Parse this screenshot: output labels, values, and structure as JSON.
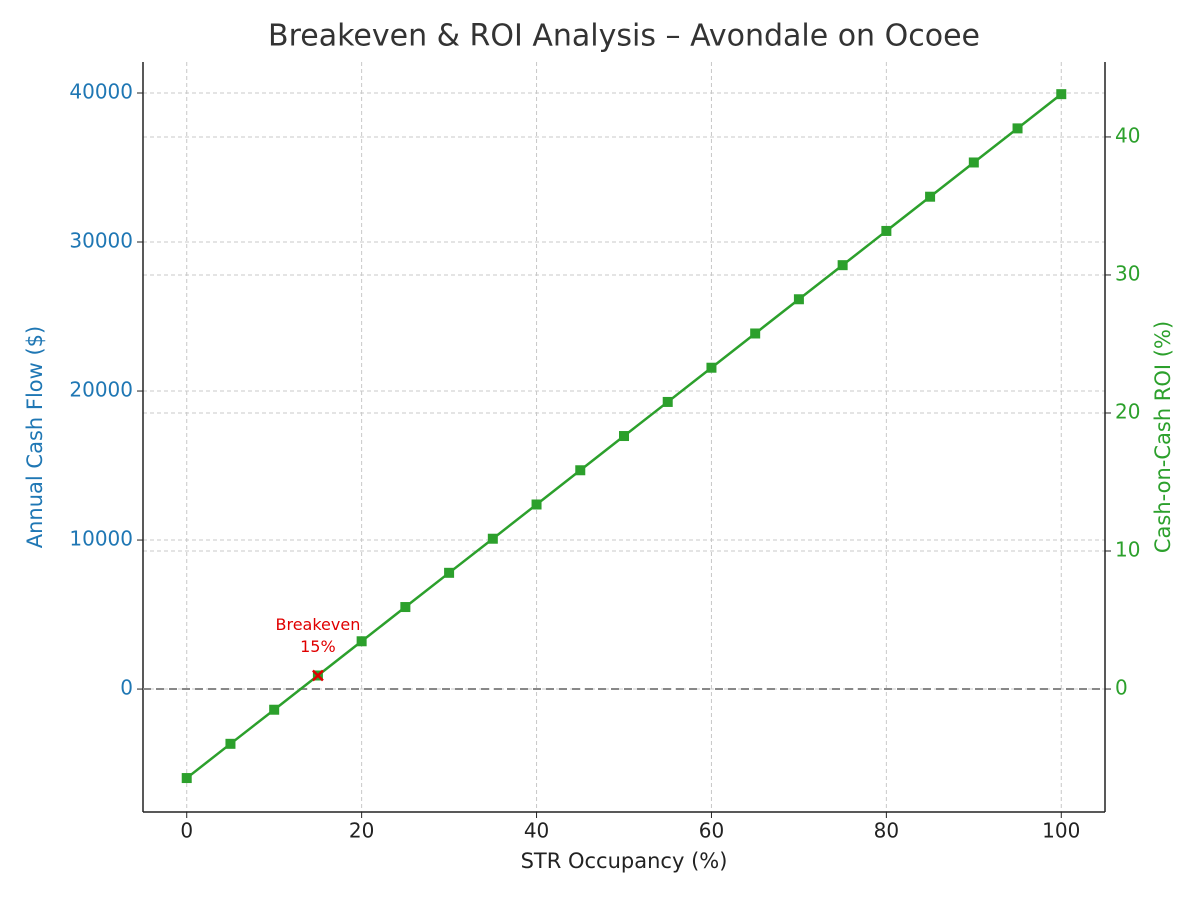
{
  "chart_data": {
    "type": "line",
    "title": "Breakeven & ROI Analysis – Avondale on Ocoee",
    "x_label": "STR Occupancy (%)",
    "y_label": "Annual Cash Flow ($)",
    "y2_label": "Cash-on-Cash ROI (%)",
    "x": [
      0,
      5,
      10,
      15,
      20,
      25,
      30,
      35,
      40,
      45,
      50,
      55,
      60,
      65,
      70,
      75,
      80,
      85,
      90,
      95,
      100
    ],
    "series": [
      {
        "color": "#2ca02c",
        "axis": "y2",
        "marker": "square",
        "values": [
          -6.45,
          -3.97,
          -1.5,
          0.98,
          3.46,
          5.94,
          8.42,
          10.89,
          13.37,
          15.85,
          18.33,
          20.8,
          23.28,
          25.76,
          28.24,
          30.71,
          33.19,
          35.67,
          38.15,
          40.62,
          43.1
        ]
      }
    ],
    "xlim": [
      -5,
      105
    ],
    "xticks": [
      0,
      20,
      40,
      60,
      80,
      100
    ],
    "ylim": [
      -8250,
      42080
    ],
    "yticks": [
      0,
      10000,
      20000,
      30000,
      40000
    ],
    "y_color": "#1f77b4",
    "y2lim": [
      -8.91,
      45.43
    ],
    "y2ticks": [
      0,
      10,
      20,
      30,
      40
    ],
    "y2_color": "#2ca02c",
    "grid": true,
    "hline": {
      "y": 0,
      "color": "#888888"
    },
    "annotations": [
      {
        "lines": [
          "Breakeven",
          "15%"
        ],
        "x": 15,
        "y2": 0.98,
        "color": "#e00000"
      }
    ]
  }
}
